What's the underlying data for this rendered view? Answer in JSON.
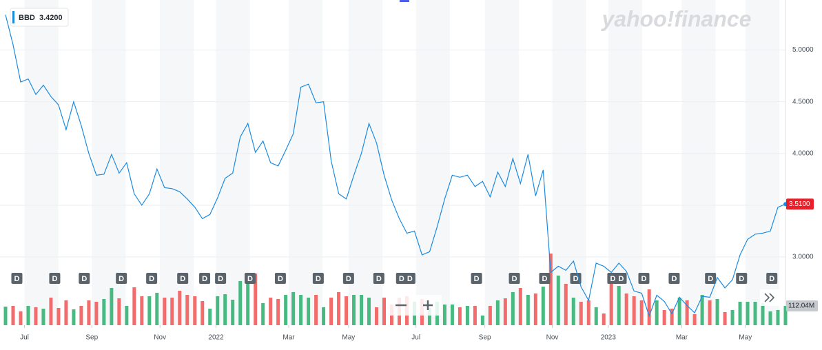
{
  "logo": "yahoo!finance",
  "chart_data": {
    "type": "line",
    "series": [
      {
        "name": "BBD",
        "color": "#1a8be0",
        "values": [
          5.34,
          5.05,
          4.69,
          4.72,
          4.57,
          4.66,
          4.55,
          4.47,
          4.23,
          4.5,
          4.27,
          4.0,
          3.79,
          3.8,
          3.99,
          3.81,
          3.91,
          3.61,
          3.5,
          3.61,
          3.85,
          3.67,
          3.66,
          3.63,
          3.56,
          3.48,
          3.37,
          3.41,
          3.57,
          3.76,
          3.81,
          4.16,
          4.29,
          4.01,
          4.12,
          3.91,
          3.88,
          4.03,
          4.19,
          4.64,
          4.67,
          4.49,
          4.5,
          3.93,
          3.61,
          3.56,
          3.79,
          4.0,
          4.29,
          4.1,
          3.79,
          3.55,
          3.37,
          3.23,
          3.25,
          3.02,
          3.05,
          3.29,
          3.56,
          3.79,
          3.77,
          3.79,
          3.68,
          3.73,
          3.58,
          3.82,
          3.68,
          3.95,
          3.71,
          3.99,
          3.59,
          3.84,
          2.85,
          2.91,
          2.87,
          2.96,
          2.71,
          2.58,
          2.94,
          2.91,
          2.85,
          2.94,
          2.86,
          2.67,
          2.65,
          2.43,
          2.63,
          2.57,
          2.45,
          2.61,
          2.53,
          2.46,
          2.62,
          2.61,
          2.8,
          2.7,
          2.78,
          3.02,
          3.17,
          3.22,
          3.23,
          3.25,
          3.48,
          3.51
        ]
      }
    ],
    "legend_value": {
      "value": 3.42,
      "label": "3.4200"
    },
    "current_price": {
      "value": 3.51,
      "label": "3.5100"
    },
    "volume": {
      "up_color": "#48b980",
      "down_color": "#f26c6c",
      "values": [
        108,
        112,
        80,
        112,
        104,
        96,
        160,
        100,
        144,
        92,
        112,
        144,
        136,
        152,
        216,
        156,
        112,
        220,
        168,
        168,
        188,
        160,
        160,
        200,
        176,
        168,
        140,
        96,
        168,
        180,
        148,
        256,
        296,
        300,
        128,
        160,
        152,
        176,
        192,
        176,
        160,
        176,
        104,
        160,
        192,
        168,
        176,
        176,
        160,
        104,
        160,
        120,
        160,
        168,
        136,
        152,
        100,
        136,
        120,
        120,
        104,
        112,
        112,
        56,
        112,
        144,
        156,
        192,
        216,
        176,
        184,
        224,
        416,
        288,
        240,
        160,
        136,
        144,
        104,
        68,
        264,
        228,
        184,
        168,
        144,
        208,
        144,
        88,
        96,
        160,
        144,
        64,
        176,
        144,
        152,
        76,
        88,
        136,
        136,
        136,
        128,
        80,
        88,
        112.04
      ]
    },
    "current_volume": {
      "value": 112.04,
      "label": "112.04M"
    },
    "dividend_label": "D",
    "dividends": [
      1.5,
      6.5,
      10.4,
      15.3,
      19.3,
      23.4,
      26.3,
      28.4,
      32.3,
      36.3,
      41.3,
      45.3,
      49.3,
      52.3,
      53.4,
      62.2,
      67.2,
      71.2,
      75.3,
      80.2,
      81.3,
      84.3,
      88.3,
      93.1,
      97.2,
      101.2
    ],
    "xlim": [
      0,
      103
    ],
    "xticks": [
      {
        "value": 2.5,
        "label": "Jul"
      },
      {
        "value": 11.4,
        "label": "Sep"
      },
      {
        "value": 20.4,
        "label": "Nov"
      },
      {
        "value": 27.8,
        "label": "2022"
      },
      {
        "value": 37.4,
        "label": "Mar"
      },
      {
        "value": 45.3,
        "label": "May"
      },
      {
        "value": 54.2,
        "label": "Jul"
      },
      {
        "value": 63.3,
        "label": "Sep"
      },
      {
        "value": 72.2,
        "label": "Nov"
      },
      {
        "value": 79.6,
        "label": "2023"
      },
      {
        "value": 89.3,
        "label": "Mar"
      },
      {
        "value": 97.7,
        "label": "May"
      }
    ],
    "ylim": [
      2.34,
      5.45
    ],
    "yticks": [
      {
        "value": 3,
        "label": "3.0000"
      },
      {
        "value": 3.5,
        "label": "3.5000"
      },
      {
        "value": 4,
        "label": "4.0000"
      },
      {
        "value": 4.5,
        "label": "4.5000"
      },
      {
        "value": 5,
        "label": "5.0000"
      }
    ],
    "grid": true
  }
}
